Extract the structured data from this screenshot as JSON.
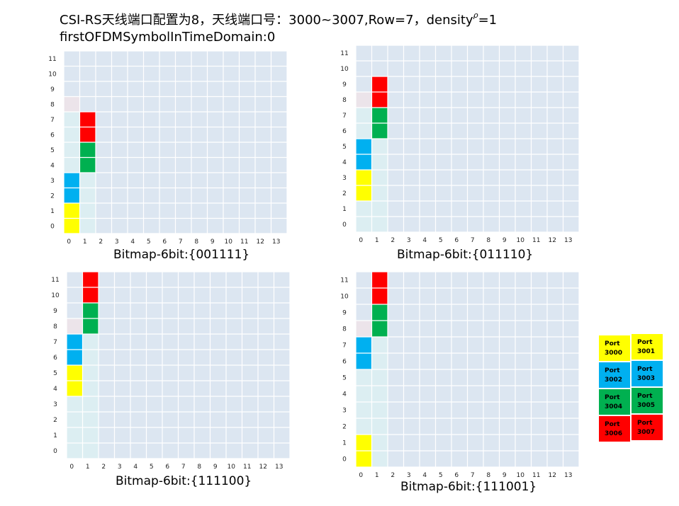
{
  "title": {
    "line1_prefix": "CSI-RS天线端口配置为8，天线端口号：3000~3007,Row=7，density",
    "rho": "ρ",
    "line1_suffix": "=1",
    "line2": "firstOFDMSymbolInTimeDomain:0"
  },
  "colors": {
    "grid_bg": "#dce6f1",
    "grid_line": "#ffffff",
    "shade_cdm": "#dceef2",
    "shade_pink": "#ece4ea",
    "yellow": "#ffff00",
    "blue": "#00b0f0",
    "green": "#00b050",
    "red": "#ff0000"
  },
  "panels": [
    {
      "caption": "Bitmap-6bit:{001111}",
      "y_ticks": [
        "0",
        "1",
        "2",
        "3",
        "4",
        "5",
        "6",
        "7",
        "8",
        "9",
        "10",
        "11"
      ],
      "x_ticks": [
        "0",
        "1",
        "2",
        "3",
        "4",
        "5",
        "6",
        "7",
        "8",
        "9",
        "10",
        "11",
        "12",
        "13"
      ],
      "cells": [
        {
          "sub": 0,
          "sym": 0,
          "c": "yellow"
        },
        {
          "sub": 1,
          "sym": 0,
          "c": "yellow"
        },
        {
          "sub": 0,
          "sym": 1,
          "c": "shade_cdm"
        },
        {
          "sub": 1,
          "sym": 1,
          "c": "shade_cdm"
        },
        {
          "sub": 2,
          "sym": 0,
          "c": "blue"
        },
        {
          "sub": 3,
          "sym": 0,
          "c": "blue"
        },
        {
          "sub": 2,
          "sym": 1,
          "c": "shade_cdm"
        },
        {
          "sub": 3,
          "sym": 1,
          "c": "shade_cdm"
        },
        {
          "sub": 4,
          "sym": 1,
          "c": "green"
        },
        {
          "sub": 5,
          "sym": 1,
          "c": "green"
        },
        {
          "sub": 4,
          "sym": 0,
          "c": "shade_cdm"
        },
        {
          "sub": 5,
          "sym": 0,
          "c": "shade_cdm"
        },
        {
          "sub": 6,
          "sym": 1,
          "c": "red"
        },
        {
          "sub": 7,
          "sym": 1,
          "c": "red"
        },
        {
          "sub": 6,
          "sym": 0,
          "c": "shade_cdm"
        },
        {
          "sub": 7,
          "sym": 0,
          "c": "shade_cdm"
        },
        {
          "sub": 8,
          "sym": 0,
          "c": "shade_pink"
        }
      ]
    },
    {
      "caption": "Bitmap-6bit:{011110}",
      "y_ticks": [
        "0",
        "1",
        "2",
        "3",
        "4",
        "5",
        "6",
        "7",
        "8",
        "9",
        "10",
        "11"
      ],
      "x_ticks": [
        "0",
        "1",
        "2",
        "3",
        "4",
        "5",
        "6",
        "7",
        "8",
        "9",
        "10",
        "11",
        "12",
        "13"
      ],
      "cells": [
        {
          "sub": 2,
          "sym": 0,
          "c": "yellow"
        },
        {
          "sub": 3,
          "sym": 0,
          "c": "yellow"
        },
        {
          "sub": 4,
          "sym": 0,
          "c": "blue"
        },
        {
          "sub": 5,
          "sym": 0,
          "c": "blue"
        },
        {
          "sub": 6,
          "sym": 1,
          "c": "green"
        },
        {
          "sub": 7,
          "sym": 1,
          "c": "green"
        },
        {
          "sub": 8,
          "sym": 1,
          "c": "red"
        },
        {
          "sub": 9,
          "sym": 1,
          "c": "red"
        },
        {
          "sub": 0,
          "sym": 0,
          "c": "shade_cdm"
        },
        {
          "sub": 1,
          "sym": 0,
          "c": "shade_cdm"
        },
        {
          "sub": 0,
          "sym": 1,
          "c": "shade_cdm"
        },
        {
          "sub": 1,
          "sym": 1,
          "c": "shade_cdm"
        },
        {
          "sub": 2,
          "sym": 1,
          "c": "shade_cdm"
        },
        {
          "sub": 3,
          "sym": 1,
          "c": "shade_cdm"
        },
        {
          "sub": 4,
          "sym": 1,
          "c": "shade_cdm"
        },
        {
          "sub": 5,
          "sym": 1,
          "c": "shade_cdm"
        },
        {
          "sub": 6,
          "sym": 0,
          "c": "shade_cdm"
        },
        {
          "sub": 7,
          "sym": 0,
          "c": "shade_cdm"
        },
        {
          "sub": 8,
          "sym": 0,
          "c": "shade_pink"
        }
      ]
    },
    {
      "caption": "Bitmap-6bit:{111100}",
      "y_ticks": [
        "0",
        "1",
        "2",
        "3",
        "4",
        "5",
        "6",
        "7",
        "8",
        "9",
        "10",
        "11"
      ],
      "x_ticks": [
        "0",
        "1",
        "2",
        "3",
        "4",
        "5",
        "6",
        "7",
        "8",
        "9",
        "10",
        "11",
        "12",
        "13"
      ],
      "cells": [
        {
          "sub": 4,
          "sym": 0,
          "c": "yellow"
        },
        {
          "sub": 5,
          "sym": 0,
          "c": "yellow"
        },
        {
          "sub": 6,
          "sym": 0,
          "c": "blue"
        },
        {
          "sub": 7,
          "sym": 0,
          "c": "blue"
        },
        {
          "sub": 8,
          "sym": 1,
          "c": "green"
        },
        {
          "sub": 9,
          "sym": 1,
          "c": "green"
        },
        {
          "sub": 10,
          "sym": 1,
          "c": "red"
        },
        {
          "sub": 11,
          "sym": 1,
          "c": "red"
        },
        {
          "sub": 0,
          "sym": 0,
          "c": "shade_cdm"
        },
        {
          "sub": 1,
          "sym": 0,
          "c": "shade_cdm"
        },
        {
          "sub": 2,
          "sym": 0,
          "c": "shade_cdm"
        },
        {
          "sub": 3,
          "sym": 0,
          "c": "shade_cdm"
        },
        {
          "sub": 0,
          "sym": 1,
          "c": "shade_cdm"
        },
        {
          "sub": 1,
          "sym": 1,
          "c": "shade_cdm"
        },
        {
          "sub": 2,
          "sym": 1,
          "c": "shade_cdm"
        },
        {
          "sub": 3,
          "sym": 1,
          "c": "shade_cdm"
        },
        {
          "sub": 4,
          "sym": 1,
          "c": "shade_cdm"
        },
        {
          "sub": 5,
          "sym": 1,
          "c": "shade_cdm"
        },
        {
          "sub": 6,
          "sym": 1,
          "c": "shade_cdm"
        },
        {
          "sub": 7,
          "sym": 1,
          "c": "shade_cdm"
        },
        {
          "sub": 8,
          "sym": 0,
          "c": "shade_pink"
        }
      ]
    },
    {
      "caption": "Bitmap-6bit:{111001}",
      "y_ticks": [
        "0",
        "1",
        "2",
        "3",
        "4",
        "5",
        "6",
        "7",
        "8",
        "9",
        "10",
        "11"
      ],
      "x_ticks": [
        "0",
        "1",
        "2",
        "3",
        "4",
        "5",
        "6",
        "7",
        "8",
        "9",
        "10",
        "11",
        "12",
        "13"
      ],
      "cells": [
        {
          "sub": 0,
          "sym": 0,
          "c": "yellow"
        },
        {
          "sub": 1,
          "sym": 0,
          "c": "yellow"
        },
        {
          "sub": 6,
          "sym": 0,
          "c": "blue"
        },
        {
          "sub": 7,
          "sym": 0,
          "c": "blue"
        },
        {
          "sub": 8,
          "sym": 1,
          "c": "green"
        },
        {
          "sub": 9,
          "sym": 1,
          "c": "green"
        },
        {
          "sub": 10,
          "sym": 1,
          "c": "red"
        },
        {
          "sub": 11,
          "sym": 1,
          "c": "red"
        },
        {
          "sub": 0,
          "sym": 1,
          "c": "shade_cdm"
        },
        {
          "sub": 1,
          "sym": 1,
          "c": "shade_cdm"
        },
        {
          "sub": 2,
          "sym": 0,
          "c": "shade_cdm"
        },
        {
          "sub": 3,
          "sym": 0,
          "c": "shade_cdm"
        },
        {
          "sub": 4,
          "sym": 0,
          "c": "shade_cdm"
        },
        {
          "sub": 5,
          "sym": 0,
          "c": "shade_cdm"
        },
        {
          "sub": 2,
          "sym": 1,
          "c": "shade_cdm"
        },
        {
          "sub": 3,
          "sym": 1,
          "c": "shade_cdm"
        },
        {
          "sub": 4,
          "sym": 1,
          "c": "shade_cdm"
        },
        {
          "sub": 5,
          "sym": 1,
          "c": "shade_cdm"
        },
        {
          "sub": 6,
          "sym": 1,
          "c": "shade_cdm"
        },
        {
          "sub": 7,
          "sym": 1,
          "c": "shade_cdm"
        },
        {
          "sub": 8,
          "sym": 0,
          "c": "shade_pink"
        }
      ]
    }
  ],
  "legend": [
    {
      "line1": "Port",
      "line2": "3000",
      "c": "yellow"
    },
    {
      "line1": "Port",
      "line2": "3001",
      "c": "yellow"
    },
    {
      "line1": "Port",
      "line2": "3002",
      "c": "blue"
    },
    {
      "line1": "Port",
      "line2": "3003",
      "c": "blue"
    },
    {
      "line1": "Port",
      "line2": "3004",
      "c": "green"
    },
    {
      "line1": "Port",
      "line2": "3005",
      "c": "green"
    },
    {
      "line1": "Port",
      "line2": "3006",
      "c": "red"
    },
    {
      "line1": "Port",
      "line2": "3007",
      "c": "red"
    }
  ]
}
